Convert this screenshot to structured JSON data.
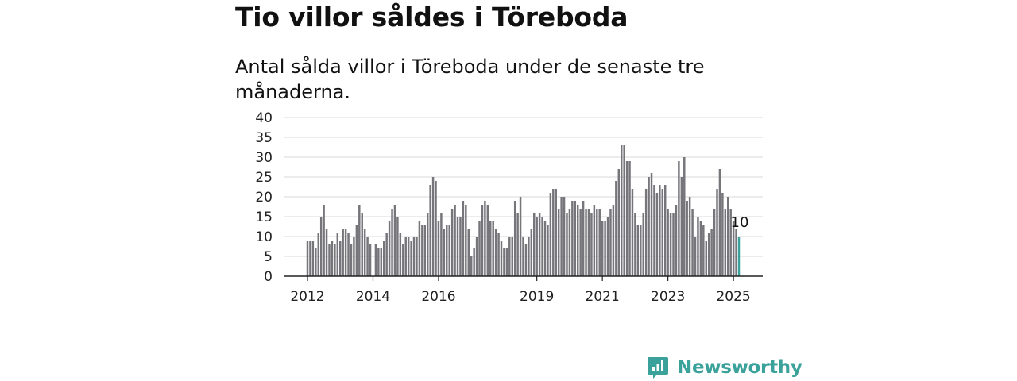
{
  "title": "Tio villor såldes i Töreboda",
  "subtitle": "Antal sålda villor i Töreboda under de senaste tre månaderna.",
  "brand": {
    "name": "Newsworthy",
    "icon": "newsworthy-logo-icon",
    "color": "#3aa19b"
  },
  "chart_data": {
    "type": "bar",
    "ylim": [
      0,
      40
    ],
    "yticks": [
      0,
      5,
      10,
      15,
      20,
      25,
      30,
      35,
      40
    ],
    "xtick_labels": [
      "2012",
      "2014",
      "2016",
      "2019",
      "2021",
      "2023",
      "2025"
    ],
    "x_start": "2012-01",
    "x_end": "2025-04",
    "grid": true,
    "bar_color": "#76757a",
    "highlight_color": "#3aa19b",
    "highlight_label": "10",
    "values": [
      9,
      9,
      9,
      7,
      11,
      15,
      18,
      12,
      8,
      9,
      8,
      11,
      9,
      12,
      12,
      11,
      8,
      10,
      13,
      18,
      16,
      12,
      10,
      8,
      0,
      8,
      7,
      7,
      9,
      11,
      14,
      17,
      18,
      15,
      11,
      8,
      10,
      10,
      9,
      10,
      10,
      14,
      13,
      13,
      16,
      23,
      25,
      24,
      14,
      16,
      12,
      13,
      13,
      17,
      18,
      15,
      15,
      19,
      18,
      12,
      5,
      7,
      10,
      14,
      18,
      19,
      18,
      14,
      14,
      12,
      11,
      9,
      7,
      7,
      10,
      10,
      19,
      16,
      20,
      10,
      8,
      10,
      12,
      16,
      15,
      16,
      15,
      14,
      13,
      21,
      22,
      22,
      17,
      20,
      20,
      16,
      17,
      19,
      19,
      18,
      17,
      19,
      17,
      17,
      16,
      18,
      17,
      17,
      14,
      14,
      15,
      17,
      18,
      24,
      27,
      33,
      33,
      29,
      29,
      22,
      16,
      13,
      13,
      16,
      22,
      25,
      26,
      23,
      21,
      23,
      22,
      23,
      17,
      16,
      16,
      18,
      29,
      25,
      30,
      19,
      20,
      17,
      10,
      15,
      14,
      13,
      9,
      11,
      12,
      17,
      22,
      27,
      21,
      17,
      20,
      17,
      14,
      12,
      10
    ]
  }
}
